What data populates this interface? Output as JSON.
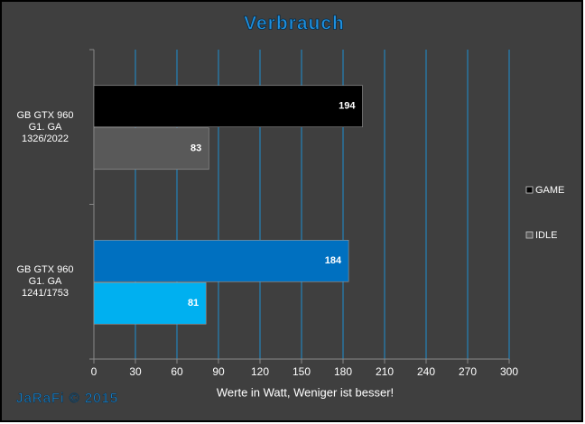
{
  "chart_data": {
    "type": "bar",
    "orientation": "horizontal",
    "title": "Verbrauch",
    "categories": [
      "GB GTX 960\nG1. GA\n1326/2022",
      "GB GTX 960\nG1. GA\n1241/1753"
    ],
    "series": [
      {
        "name": "GAME",
        "color": "#000000",
        "colors": [
          "#000000",
          "#0070c0"
        ],
        "values": [
          194,
          184
        ]
      },
      {
        "name": "IDLE",
        "color": "#595959",
        "colors": [
          "#595959",
          "#00b0f0"
        ],
        "values": [
          83,
          81
        ]
      }
    ],
    "xlim": [
      0,
      300
    ],
    "xticks": [
      0,
      30,
      60,
      90,
      120,
      150,
      180,
      210,
      240,
      270,
      300
    ],
    "x_label": "Werte in Watt, Weniger ist besser!",
    "grid": true,
    "legend": "right",
    "watermark": "JaRaFi © 2015"
  }
}
